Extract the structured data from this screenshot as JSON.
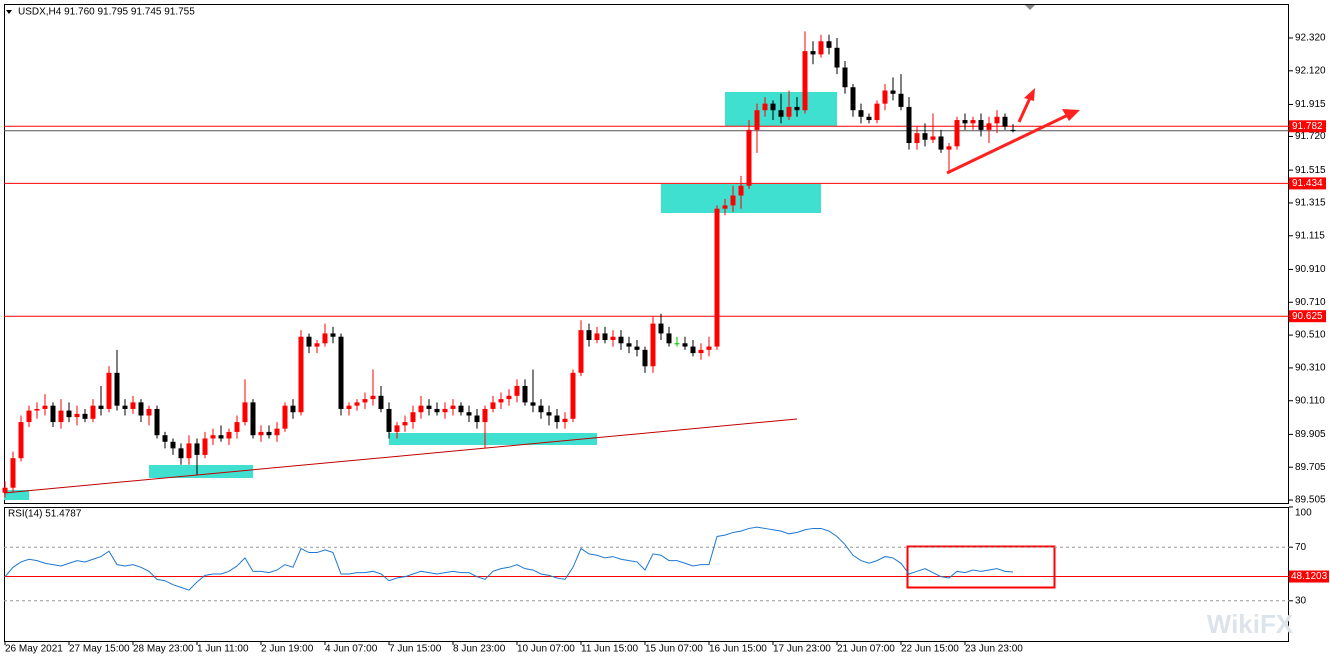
{
  "chart_data": [
    {
      "type": "candlestick",
      "title": "USDX,H4  91.760 91.795 91.745 91.755",
      "categories": [
        "26 May 2021",
        null,
        null,
        null,
        null,
        null,
        null,
        null,
        "27 May 15:00",
        null,
        null,
        null,
        null,
        null,
        null,
        null,
        "28 May 23:00",
        null,
        null,
        null,
        null,
        null,
        null,
        null,
        "1 Jun 11:00",
        null,
        null,
        null,
        null,
        null,
        null,
        null,
        "2 Jun 19:00",
        null,
        null,
        null,
        null,
        null,
        null,
        null,
        "4 Jun 07:00",
        null,
        null,
        null,
        null,
        null,
        null,
        null,
        "7 Jun 15:00",
        null,
        null,
        null,
        null,
        null,
        null,
        null,
        "8 Jun 23:00",
        null,
        null,
        null,
        null,
        null,
        null,
        null,
        "10 Jun 07:00",
        null,
        null,
        null,
        null,
        null,
        null,
        null,
        "11 Jun 15:00",
        null,
        null,
        null,
        null,
        null,
        null,
        null,
        "15 Jun 07:00",
        null,
        null,
        null,
        null,
        null,
        null,
        null,
        "16 Jun 15:00",
        null,
        null,
        null,
        null,
        null,
        null,
        null,
        "17 Jun 23:00",
        null,
        null,
        null,
        null,
        null,
        null,
        null,
        "21 Jun 07:00",
        null,
        null,
        null,
        null,
        null,
        null,
        null,
        "22 Jun 15:00",
        null,
        null,
        null,
        null,
        null,
        null,
        null,
        "23 Jun 23:00",
        null,
        null,
        null,
        null,
        null,
        null
      ],
      "open": [
        89.55,
        89.58,
        89.76,
        89.98,
        90.05,
        90.06,
        90.08,
        89.98,
        90.05,
        90.01,
        90.03,
        90.0,
        90.08,
        90.06,
        90.28,
        90.08,
        90.06,
        90.1,
        90.02,
        90.06,
        89.9,
        89.86,
        89.82,
        89.76,
        89.85,
        89.78,
        89.88,
        89.9,
        89.88,
        89.92,
        89.98,
        90.1,
        89.9,
        89.92,
        89.9,
        89.94,
        90.08,
        90.04,
        90.5,
        90.44,
        90.46,
        90.52,
        90.5,
        90.06,
        90.08,
        90.1,
        90.12,
        90.14,
        90.06,
        89.92,
        89.96,
        89.98,
        90.04,
        90.08,
        90.06,
        90.04,
        90.06,
        90.08,
        90.04,
        90.02,
        89.98,
        90.06,
        90.1,
        90.12,
        90.14,
        90.2,
        90.1,
        90.08,
        90.04,
        90.02,
        89.98,
        90.0,
        90.28,
        90.54,
        90.48,
        90.52,
        90.48,
        90.5,
        90.46,
        90.44,
        90.42,
        90.32,
        90.58,
        90.52,
        90.46,
        90.46,
        90.44,
        90.4,
        90.42,
        90.44,
        91.28,
        91.3,
        91.36,
        91.42,
        91.76,
        91.88,
        91.92,
        91.88,
        91.84,
        91.9,
        91.88,
        92.24,
        92.22,
        92.3,
        92.26,
        92.14,
        92.02,
        91.88,
        91.84,
        91.82,
        91.92,
        92.0,
        91.98,
        91.9,
        91.68,
        91.74,
        91.7,
        91.72,
        91.64,
        91.66,
        91.82,
        91.8,
        91.82,
        91.76,
        91.8,
        91.84,
        91.76
      ],
      "high": [
        89.62,
        89.8,
        90.02,
        90.08,
        90.1,
        90.15,
        90.1,
        90.12,
        90.1,
        90.08,
        90.06,
        90.12,
        90.2,
        90.32,
        90.42,
        90.12,
        90.14,
        90.12,
        90.08,
        90.08,
        89.92,
        89.88,
        89.85,
        89.9,
        89.88,
        89.92,
        89.94,
        89.96,
        89.94,
        90.02,
        90.24,
        90.12,
        89.96,
        89.96,
        89.98,
        90.1,
        90.12,
        90.54,
        90.52,
        90.48,
        90.58,
        90.56,
        90.52,
        90.1,
        90.12,
        90.16,
        90.3,
        90.2,
        90.1,
        89.98,
        90.02,
        90.08,
        90.14,
        90.12,
        90.1,
        90.1,
        90.12,
        90.1,
        90.08,
        90.06,
        90.08,
        90.14,
        90.16,
        90.18,
        90.24,
        90.24,
        90.3,
        90.12,
        90.08,
        90.06,
        90.04,
        90.3,
        90.6,
        90.58,
        90.56,
        90.56,
        90.54,
        90.54,
        90.5,
        90.48,
        90.44,
        90.62,
        90.64,
        90.56,
        90.5,
        90.5,
        90.48,
        90.46,
        90.5,
        91.3,
        91.34,
        91.42,
        91.48,
        91.82,
        91.92,
        91.96,
        91.94,
        91.98,
        92.0,
        91.96,
        92.36,
        92.3,
        92.34,
        92.34,
        92.32,
        92.18,
        92.04,
        91.92,
        91.86,
        91.94,
        92.04,
        92.08,
        92.1,
        91.96,
        91.78,
        91.8,
        91.86,
        91.76,
        91.68,
        91.84,
        91.86,
        91.84,
        91.86,
        91.84,
        91.88,
        91.86,
        91.795
      ],
      "low": [
        89.52,
        89.55,
        89.74,
        89.95,
        90.0,
        90.02,
        89.95,
        89.94,
        89.98,
        89.96,
        89.98,
        89.98,
        90.02,
        90.04,
        90.05,
        90.02,
        90.03,
        89.98,
        89.96,
        89.88,
        89.82,
        89.78,
        89.72,
        89.72,
        89.66,
        89.76,
        89.84,
        89.86,
        89.84,
        89.88,
        89.96,
        89.88,
        89.86,
        89.88,
        89.86,
        89.92,
        90.0,
        90.02,
        90.4,
        90.4,
        90.44,
        90.46,
        90.02,
        90.02,
        90.05,
        90.06,
        90.08,
        90.04,
        89.88,
        89.88,
        89.92,
        89.94,
        90.0,
        90.02,
        90.02,
        90.0,
        90.02,
        90.02,
        89.98,
        89.94,
        89.82,
        90.04,
        90.06,
        90.08,
        90.1,
        90.08,
        90.04,
        90.0,
        89.96,
        89.94,
        89.94,
        89.98,
        90.26,
        90.44,
        90.46,
        90.46,
        90.44,
        90.42,
        90.4,
        90.38,
        90.28,
        90.28,
        90.48,
        90.44,
        90.44,
        90.42,
        90.38,
        90.36,
        90.38,
        90.42,
        91.24,
        91.26,
        91.28,
        91.4,
        91.62,
        91.84,
        91.82,
        91.8,
        91.82,
        91.84,
        91.86,
        92.16,
        92.2,
        92.22,
        92.1,
        91.98,
        91.84,
        91.8,
        91.8,
        91.8,
        91.88,
        91.94,
        91.88,
        91.64,
        91.64,
        91.66,
        91.68,
        91.62,
        91.5,
        91.64,
        91.76,
        91.76,
        91.72,
        91.68,
        91.74,
        91.76,
        91.745
      ],
      "close": [
        89.58,
        89.76,
        89.98,
        90.05,
        90.06,
        90.08,
        89.98,
        90.05,
        90.01,
        90.03,
        90.0,
        90.08,
        90.06,
        90.28,
        90.08,
        90.06,
        90.1,
        90.02,
        90.06,
        89.9,
        89.86,
        89.82,
        89.76,
        89.85,
        89.78,
        89.88,
        89.9,
        89.88,
        89.92,
        89.98,
        90.1,
        89.9,
        89.92,
        89.9,
        89.94,
        90.08,
        90.04,
        90.5,
        90.44,
        90.46,
        90.52,
        90.5,
        90.06,
        90.08,
        90.1,
        90.12,
        90.14,
        90.06,
        89.92,
        89.96,
        89.98,
        90.04,
        90.08,
        90.06,
        90.04,
        90.06,
        90.08,
        90.04,
        90.02,
        89.98,
        90.06,
        90.1,
        90.12,
        90.14,
        90.2,
        90.1,
        90.08,
        90.04,
        90.02,
        89.98,
        90.0,
        90.28,
        90.54,
        90.48,
        90.52,
        90.48,
        90.5,
        90.46,
        90.44,
        90.42,
        90.32,
        90.58,
        90.52,
        90.46,
        90.46,
        90.44,
        90.4,
        90.42,
        90.44,
        91.28,
        91.3,
        91.36,
        91.42,
        91.76,
        91.88,
        91.92,
        91.88,
        91.84,
        91.9,
        91.88,
        92.24,
        92.22,
        92.3,
        92.26,
        92.14,
        92.02,
        91.88,
        91.84,
        91.82,
        91.92,
        92.0,
        91.98,
        91.9,
        91.68,
        91.74,
        91.7,
        91.72,
        91.64,
        91.66,
        91.82,
        91.8,
        91.82,
        91.76,
        91.8,
        91.84,
        91.78,
        91.755
      ],
      "bull_color": "#ff0000",
      "bear_color": "#000000",
      "doji_color": "#00c000",
      "ylim": [
        89.487,
        92.527
      ],
      "yticks": [
        {
          "value": 92.32,
          "label": "92.320"
        },
        {
          "value": 92.12,
          "label": "92.120"
        },
        {
          "value": 91.915,
          "label": "91.915"
        },
        {
          "value": 91.72,
          "label": "91.720"
        },
        {
          "value": 91.515,
          "label": "91.515"
        },
        {
          "value": 91.315,
          "label": "91.315"
        },
        {
          "value": 91.115,
          "label": "91.115"
        },
        {
          "value": 90.91,
          "label": "90.910"
        },
        {
          "value": 90.71,
          "label": "90.710"
        },
        {
          "value": 90.51,
          "label": "90.510"
        },
        {
          "value": 90.31,
          "label": "90.310"
        },
        {
          "value": 90.11,
          "label": "90.110"
        },
        {
          "value": 89.905,
          "label": "89.905"
        },
        {
          "value": 89.705,
          "label": "89.705"
        },
        {
          "value": 89.505,
          "label": "89.505"
        }
      ],
      "levels": [
        {
          "value": 91.782,
          "label": "91.782"
        },
        {
          "value": 91.434,
          "label": "91.434"
        },
        {
          "value": 90.625,
          "label": "90.625"
        }
      ],
      "level_color": "#ff0000",
      "current_price": 91.755,
      "grid": false,
      "watermark": "WikiFX"
    },
    {
      "type": "line",
      "title": "RSI(14) 51.4787",
      "color": "#1e78d0",
      "values": [
        48,
        55,
        59,
        61,
        60,
        58,
        57,
        56,
        58,
        60,
        59,
        61,
        63,
        67,
        57,
        56,
        57,
        55,
        52,
        46,
        45,
        42,
        40,
        38,
        44,
        49,
        50,
        50,
        52,
        56,
        62,
        52,
        52,
        51,
        53,
        57,
        55,
        69,
        66,
        66,
        68,
        66,
        50,
        50,
        51,
        51,
        52,
        50,
        45,
        47,
        48,
        50,
        52,
        51,
        50,
        51,
        52,
        51,
        51,
        48,
        46,
        52,
        54,
        55,
        57,
        54,
        53,
        50,
        49,
        47,
        46,
        55,
        69,
        65,
        64,
        62,
        63,
        61,
        60,
        59,
        53,
        65,
        64,
        60,
        60,
        58,
        56,
        57,
        57,
        78,
        79,
        81,
        82,
        84,
        85,
        84,
        83,
        82,
        80,
        81,
        83,
        84,
        84,
        82,
        78,
        72,
        64,
        60,
        58,
        60,
        63,
        62,
        58,
        50,
        52,
        54,
        51,
        48,
        47,
        52,
        51,
        53,
        52,
        53,
        54,
        52,
        51.4787
      ],
      "ylim": [
        0,
        100
      ],
      "yticks": [
        100,
        70,
        30
      ],
      "dashed_levels": [
        70,
        30
      ],
      "levels": [
        {
          "value": 48.1203,
          "label": "48.1203"
        }
      ],
      "level_color": "#ff0000"
    }
  ]
}
